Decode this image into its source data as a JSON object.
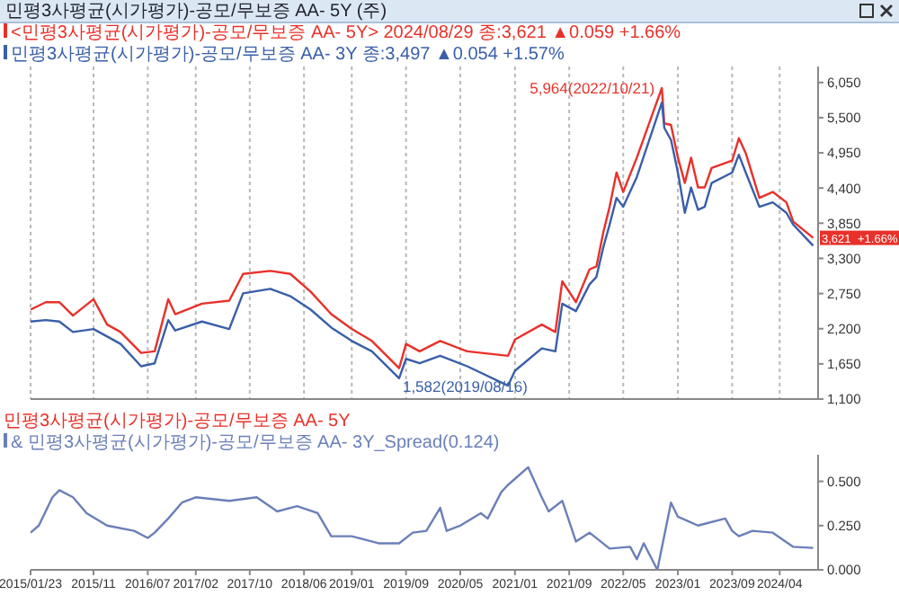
{
  "chart_data": [
    {
      "type": "line",
      "title": "민평3사평균(시가평가)-공모/무보증 AA- 5Y (주)",
      "x": [
        "2015-01-23",
        "2015-04",
        "2015-06",
        "2015-08",
        "2015-11",
        "2016-01",
        "2016-03",
        "2016-06",
        "2016-08",
        "2016-10",
        "2016-11",
        "2017-03",
        "2017-07",
        "2017-09",
        "2018-01",
        "2018-04",
        "2018-07",
        "2018-10",
        "2019-01",
        "2019-04",
        "2019-08",
        "2019-09",
        "2019-11",
        "2020-02",
        "2020-06",
        "2020-12",
        "2021-01",
        "2021-05",
        "2021-07",
        "2021-08",
        "2021-10",
        "2021-12",
        "2022-01",
        "2022-02",
        "2022-03",
        "2022-04",
        "2022-05",
        "2022-07",
        "2022-10-21",
        "2022-11",
        "2022-12",
        "2023-01",
        "2023-02",
        "2023-03",
        "2023-04",
        "2023-05",
        "2023-06",
        "2023-09",
        "2023-10",
        "2023-11",
        "2024-01",
        "2024-03",
        "2024-05",
        "2024-06",
        "2024-08-29"
      ],
      "series": [
        {
          "name": "<민평3사평균(시가평가)-공모/무보증 AA- 5Y> 2024/08/29 종:3,621 ▲0.059 +1.66%",
          "color": "#e8312a",
          "values": [
            2498,
            2615,
            2615,
            2405,
            2661,
            2265,
            2149,
            1822,
            1846,
            2661,
            2428,
            2591,
            2638,
            3057,
            3104,
            3057,
            2778,
            2428,
            2195,
            2009,
            1582,
            1962,
            1846,
            2009,
            1846,
            1776,
            2032,
            2265,
            2149,
            2941,
            2615,
            3127,
            3174,
            3710,
            4106,
            4642,
            4339,
            4875,
            5964,
            5411,
            5387,
            4875,
            4479,
            4875,
            4409,
            4409,
            4712,
            4828,
            5178,
            4945,
            4246,
            4339,
            4176,
            3873,
            3621
          ]
        },
        {
          "name": "민평3사평균(시가평가)-공모/무보증 AA- 3Y 종:3,497 ▲0.054 +1.57%",
          "color": "#3a5fa8",
          "values": [
            2312,
            2335,
            2312,
            2149,
            2195,
            2079,
            1962,
            1613,
            1659,
            2335,
            2172,
            2312,
            2195,
            2754,
            2824,
            2708,
            2498,
            2218,
            2009,
            1846,
            1426,
            1729,
            1659,
            1776,
            1613,
            1310,
            1543,
            1892,
            1846,
            2591,
            2475,
            2894,
            3010,
            3477,
            3826,
            4246,
            4106,
            4572,
            5737,
            5341,
            5154,
            4642,
            4013,
            4409,
            4059,
            4106,
            4479,
            4642,
            4921,
            4642,
            4106,
            4176,
            4013,
            3826,
            3497
          ]
        }
      ],
      "xlim": [
        "2015-01-23",
        "2024-09-20"
      ],
      "xticks": [
        {
          "value": "2015-01-23",
          "label": null
        },
        {
          "value": "2015-11",
          "label": null
        },
        {
          "value": "2016-07",
          "label": null
        },
        {
          "value": "2017-02",
          "label": null
        },
        {
          "value": "2017-10",
          "label": null
        },
        {
          "value": "2018-06",
          "label": null
        },
        {
          "value": "2019-01",
          "label": null
        },
        {
          "value": "2019-09",
          "label": null
        },
        {
          "value": "2020-05",
          "label": null
        },
        {
          "value": "2021-01",
          "label": null
        },
        {
          "value": "2021-09",
          "label": null
        },
        {
          "value": "2022-05",
          "label": null
        },
        {
          "value": "2023-01",
          "label": null
        },
        {
          "value": "2023-09",
          "label": null
        },
        {
          "value": "2024-04",
          "label": null
        }
      ],
      "ylim": [
        1100,
        6300
      ],
      "yticks": [
        {
          "value": 1100,
          "label": "1,100"
        },
        {
          "value": 1650,
          "label": "1,650"
        },
        {
          "value": 2200,
          "label": "2,200"
        },
        {
          "value": 2750,
          "label": "2,750"
        },
        {
          "value": 3300,
          "label": "3,300"
        },
        {
          "value": 3850,
          "label": "3,850"
        },
        {
          "value": 4400,
          "label": "4,400"
        },
        {
          "value": 4950,
          "label": "4,950"
        },
        {
          "value": 5500,
          "label": "5,500"
        },
        {
          "value": 6050,
          "label": "6,050"
        }
      ],
      "tick_labels": "y",
      "grid": "x",
      "legend": "top left",
      "marker": "none",
      "line_style": "solid",
      "annotations": [
        {
          "text": "5,964(2022/10/21)",
          "x": "2022-10-21",
          "y": 5964
        },
        {
          "text": "1,582(2019/08/16)",
          "x": "2019-08",
          "y": 1582
        },
        {
          "text": "3,621",
          "x": "2024-08-29",
          "y": 3621
        },
        "+1.66%"
      ]
    },
    {
      "type": "line",
      "title": "민평3사평균(시가평가)-공모/무보증 AA- 5Y",
      "x": [
        "2015-01-23",
        "2015-03",
        "2015-05",
        "2015-06",
        "2015-08",
        "2015-10",
        "2016-01",
        "2016-05",
        "2016-07",
        "2016-08",
        "2016-10",
        "2016-12",
        "2017-02",
        "2017-07",
        "2017-11",
        "2018-02",
        "2018-05",
        "2018-08",
        "2018-10",
        "2019-01",
        "2019-05",
        "2019-08",
        "2019-10",
        "2019-12",
        "2020-02",
        "2020-03",
        "2020-05",
        "2020-08",
        "2020-09",
        "2020-11",
        "2020-12",
        "2021-03",
        "2021-05",
        "2021-06",
        "2021-08",
        "2021-10",
        "2021-12",
        "2022-03",
        "2022-06",
        "2022-07",
        "2022-08",
        "2022-10",
        "2022-12",
        "2023-01",
        "2023-04",
        "2023-08",
        "2023-09",
        "2023-10",
        "2023-12",
        "2024-03",
        "2024-06",
        "2024-08-29"
      ],
      "series": [
        {
          "name": "& 민평3사평균(시가평가)-공모/무보증 AA- 3Y_Spread(0.124)",
          "color": "#6b7fb8",
          "values": [
            0.21,
            0.25,
            0.41,
            0.45,
            0.41,
            0.32,
            0.25,
            0.22,
            0.18,
            0.21,
            0.29,
            0.38,
            0.41,
            0.39,
            0.41,
            0.33,
            0.36,
            0.32,
            0.19,
            0.19,
            0.15,
            0.15,
            0.21,
            0.22,
            0.35,
            0.22,
            0.25,
            0.32,
            0.29,
            0.44,
            0.48,
            0.58,
            0.41,
            0.33,
            0.39,
            0.16,
            0.21,
            0.12,
            0.13,
            0.06,
            0.15,
            0.0,
            0.38,
            0.3,
            0.25,
            0.29,
            0.22,
            0.19,
            0.22,
            0.21,
            0.13,
            0.124
          ]
        }
      ],
      "xlim": [
        "2015-01-23",
        "2024-09-20"
      ],
      "xticks": [
        {
          "value": "2015-01-23",
          "label": "2015/01/23"
        },
        {
          "value": "2015-11",
          "label": "2015/11"
        },
        {
          "value": "2016-07",
          "label": "2016/07"
        },
        {
          "value": "2017-02",
          "label": "2017/02"
        },
        {
          "value": "2017-10",
          "label": "2017/10"
        },
        {
          "value": "2018-06",
          "label": "2018/06"
        },
        {
          "value": "2019-01",
          "label": "2019/01"
        },
        {
          "value": "2019-09",
          "label": "2019/09"
        },
        {
          "value": "2020-05",
          "label": "2020/05"
        },
        {
          "value": "2021-01",
          "label": "2021/01"
        },
        {
          "value": "2021-09",
          "label": "2021/09"
        },
        {
          "value": "2022-05",
          "label": "2022/05"
        },
        {
          "value": "2023-01",
          "label": "2023/01"
        },
        {
          "value": "2023-09",
          "label": "2023/09"
        },
        {
          "value": "2024-04",
          "label": "2024/04"
        }
      ],
      "ylim": [
        0,
        0.65
      ],
      "yticks": [
        {
          "value": 0,
          "label": "0.000"
        },
        {
          "value": 0.25,
          "label": "0.250"
        },
        {
          "value": 0.5,
          "label": "0.500"
        }
      ],
      "legend": "top left",
      "marker": "none",
      "line_style": "solid"
    }
  ]
}
